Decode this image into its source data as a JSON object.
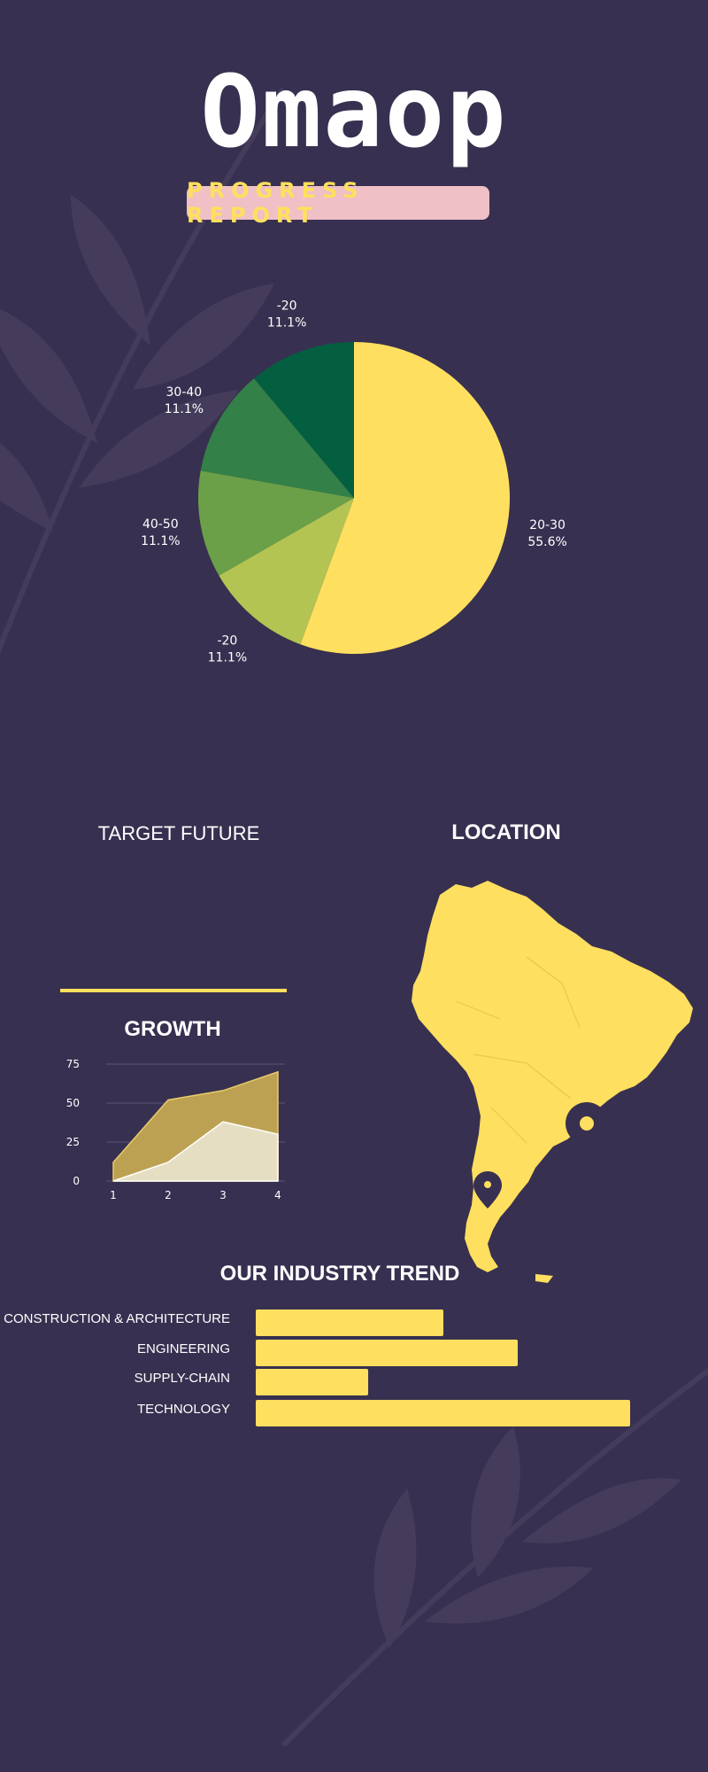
{
  "header": {
    "title": "Omaop",
    "subtitle": "PROGRESS REPORT"
  },
  "colors": {
    "background": "#383050",
    "accent": "#ffe05c",
    "badge": "#efc0c6"
  },
  "sections": {
    "target_future": "TARGET FUTURE",
    "location": "LOCATION",
    "growth": "GROWTH",
    "industry_trend": "OUR INDUSTRY TREND"
  },
  "icons": {
    "map": "south-america-map",
    "pin": "map-pin-icon"
  },
  "chart_data": [
    {
      "type": "pie",
      "title": "",
      "slices": [
        {
          "label": "20-30",
          "percent_label": "55.6%",
          "value": 55.6,
          "color": "#ffdf5f"
        },
        {
          "label": "-20",
          "percent_label": "11.1%",
          "value": 11.1,
          "color": "#b4c452"
        },
        {
          "label": "40-50",
          "percent_label": "11.1%",
          "value": 11.1,
          "color": "#6ba048"
        },
        {
          "label": "30-40",
          "percent_label": "11.1%",
          "value": 11.1,
          "color": "#338048"
        },
        {
          "label": "-20",
          "percent_label": "11.1%",
          "value": 11.1,
          "color": "#045e40"
        }
      ]
    },
    {
      "type": "area",
      "title": "GROWTH",
      "x": [
        1,
        2,
        3,
        4
      ],
      "ylim": [
        0,
        75
      ],
      "yticks": [
        0,
        25,
        50,
        75
      ],
      "grid": true,
      "series": [
        {
          "values": [
            12,
            52,
            58,
            70
          ],
          "color": "#bda152"
        },
        {
          "values": [
            0,
            12,
            38,
            30
          ],
          "color": "#e6dec2"
        }
      ]
    },
    {
      "type": "bar",
      "orientation": "horizontal",
      "title": "OUR INDUSTRY TREND",
      "categories": [
        "CONSTRUCTION & ARCHITECTURE",
        "ENGINEERING",
        "SUPPLY-CHAIN",
        "TECHNOLOGY"
      ],
      "values": [
        50,
        70,
        30,
        100
      ],
      "xlim": [
        0,
        100
      ]
    }
  ]
}
